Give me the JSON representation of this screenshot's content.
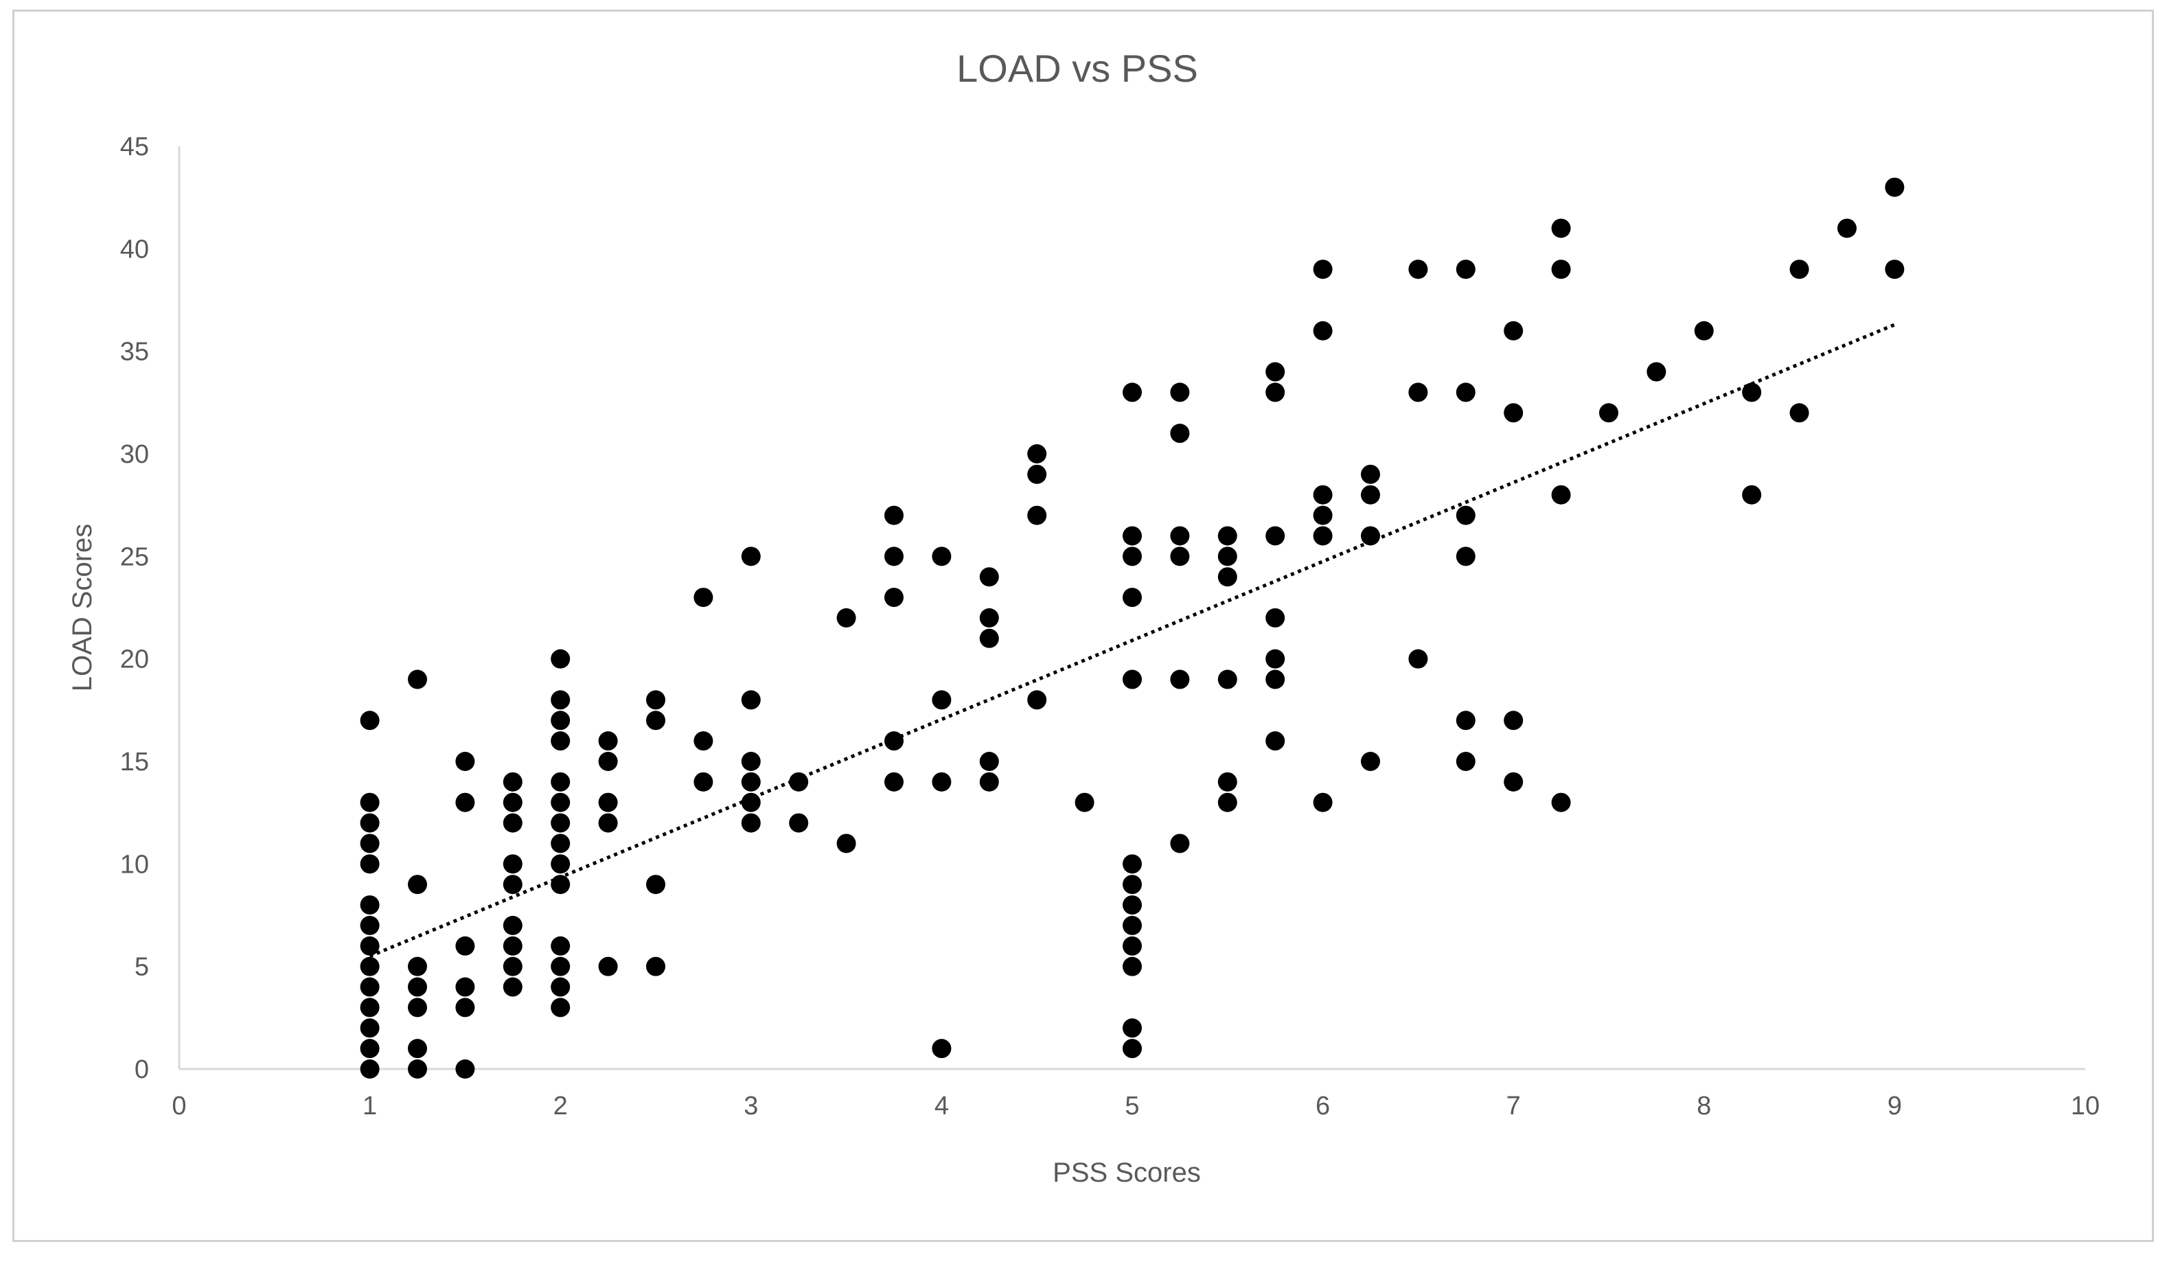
{
  "chart_data": {
    "type": "scatter",
    "title": "LOAD vs PSS",
    "xlabel": "PSS Scores",
    "ylabel": "LOAD Scores",
    "xlim": [
      0,
      10
    ],
    "ylim": [
      0,
      45
    ],
    "xticks": [
      0,
      1,
      2,
      3,
      4,
      5,
      6,
      7,
      8,
      9,
      10
    ],
    "yticks": [
      0,
      5,
      10,
      15,
      20,
      25,
      30,
      35,
      40,
      45
    ],
    "grid": false,
    "legend": "none",
    "marker_color": "#000000",
    "trendline": {
      "style": "dotted linear",
      "x": [
        1,
        9
      ],
      "y": [
        5.5,
        36.3
      ]
    },
    "points": [
      [
        1,
        0
      ],
      [
        1,
        1
      ],
      [
        1,
        2
      ],
      [
        1,
        3
      ],
      [
        1,
        4
      ],
      [
        1,
        5
      ],
      [
        1,
        6
      ],
      [
        1,
        7
      ],
      [
        1,
        8
      ],
      [
        1,
        10
      ],
      [
        1,
        11
      ],
      [
        1,
        12
      ],
      [
        1,
        13
      ],
      [
        1,
        17
      ],
      [
        1.25,
        0
      ],
      [
        1.25,
        1
      ],
      [
        1.25,
        3
      ],
      [
        1.25,
        4
      ],
      [
        1.25,
        5
      ],
      [
        1.25,
        9
      ],
      [
        1.25,
        19
      ],
      [
        1.5,
        0
      ],
      [
        1.5,
        3
      ],
      [
        1.5,
        4
      ],
      [
        1.5,
        6
      ],
      [
        1.5,
        13
      ],
      [
        1.5,
        15
      ],
      [
        1.75,
        4
      ],
      [
        1.75,
        5
      ],
      [
        1.75,
        6
      ],
      [
        1.75,
        7
      ],
      [
        1.75,
        9
      ],
      [
        1.75,
        10
      ],
      [
        1.75,
        12
      ],
      [
        1.75,
        13
      ],
      [
        1.75,
        14
      ],
      [
        2,
        3
      ],
      [
        2,
        4
      ],
      [
        2,
        5
      ],
      [
        2,
        6
      ],
      [
        2,
        9
      ],
      [
        2,
        10
      ],
      [
        2,
        11
      ],
      [
        2,
        12
      ],
      [
        2,
        13
      ],
      [
        2,
        14
      ],
      [
        2,
        16
      ],
      [
        2,
        17
      ],
      [
        2,
        18
      ],
      [
        2,
        20
      ],
      [
        2.25,
        5
      ],
      [
        2.25,
        12
      ],
      [
        2.25,
        13
      ],
      [
        2.25,
        15
      ],
      [
        2.25,
        16
      ],
      [
        2.5,
        5
      ],
      [
        2.5,
        9
      ],
      [
        2.5,
        17
      ],
      [
        2.5,
        18
      ],
      [
        2.75,
        14
      ],
      [
        2.75,
        16
      ],
      [
        2.75,
        23
      ],
      [
        3,
        12
      ],
      [
        3,
        13
      ],
      [
        3,
        14
      ],
      [
        3,
        15
      ],
      [
        3,
        18
      ],
      [
        3,
        25
      ],
      [
        3.25,
        12
      ],
      [
        3.25,
        14
      ],
      [
        3.5,
        11
      ],
      [
        3.5,
        22
      ],
      [
        3.75,
        14
      ],
      [
        3.75,
        16
      ],
      [
        3.75,
        23
      ],
      [
        3.75,
        25
      ],
      [
        3.75,
        27
      ],
      [
        4,
        1
      ],
      [
        4,
        14
      ],
      [
        4,
        18
      ],
      [
        4,
        25
      ],
      [
        4.25,
        14
      ],
      [
        4.25,
        15
      ],
      [
        4.25,
        21
      ],
      [
        4.25,
        22
      ],
      [
        4.25,
        24
      ],
      [
        4.5,
        18
      ],
      [
        4.5,
        27
      ],
      [
        4.5,
        29
      ],
      [
        4.5,
        30
      ],
      [
        4.75,
        13
      ],
      [
        5,
        1
      ],
      [
        5,
        2
      ],
      [
        5,
        5
      ],
      [
        5,
        6
      ],
      [
        5,
        7
      ],
      [
        5,
        8
      ],
      [
        5,
        9
      ],
      [
        5,
        10
      ],
      [
        5,
        19
      ],
      [
        5,
        23
      ],
      [
        5,
        25
      ],
      [
        5,
        26
      ],
      [
        5,
        33
      ],
      [
        5.25,
        11
      ],
      [
        5.25,
        19
      ],
      [
        5.25,
        25
      ],
      [
        5.25,
        26
      ],
      [
        5.25,
        31
      ],
      [
        5.25,
        33
      ],
      [
        5.5,
        13
      ],
      [
        5.5,
        14
      ],
      [
        5.5,
        19
      ],
      [
        5.5,
        24
      ],
      [
        5.5,
        25
      ],
      [
        5.5,
        26
      ],
      [
        5.75,
        16
      ],
      [
        5.75,
        19
      ],
      [
        5.75,
        20
      ],
      [
        5.75,
        22
      ],
      [
        5.75,
        26
      ],
      [
        5.75,
        33
      ],
      [
        5.75,
        34
      ],
      [
        6,
        13
      ],
      [
        6,
        26
      ],
      [
        6,
        27
      ],
      [
        6,
        28
      ],
      [
        6,
        36
      ],
      [
        6,
        39
      ],
      [
        6.25,
        15
      ],
      [
        6.25,
        26
      ],
      [
        6.25,
        28
      ],
      [
        6.25,
        29
      ],
      [
        6.5,
        20
      ],
      [
        6.5,
        33
      ],
      [
        6.5,
        39
      ],
      [
        6.75,
        15
      ],
      [
        6.75,
        17
      ],
      [
        6.75,
        25
      ],
      [
        6.75,
        27
      ],
      [
        6.75,
        33
      ],
      [
        6.75,
        39
      ],
      [
        7,
        14
      ],
      [
        7,
        17
      ],
      [
        7,
        32
      ],
      [
        7,
        36
      ],
      [
        7.25,
        13
      ],
      [
        7.25,
        28
      ],
      [
        7.25,
        39
      ],
      [
        7.25,
        41
      ],
      [
        7.5,
        32
      ],
      [
        7.75,
        34
      ],
      [
        8,
        36
      ],
      [
        8.25,
        28
      ],
      [
        8.25,
        33
      ],
      [
        8.5,
        32
      ],
      [
        8.5,
        39
      ],
      [
        8.75,
        41
      ],
      [
        9,
        39
      ],
      [
        9,
        43
      ]
    ]
  }
}
